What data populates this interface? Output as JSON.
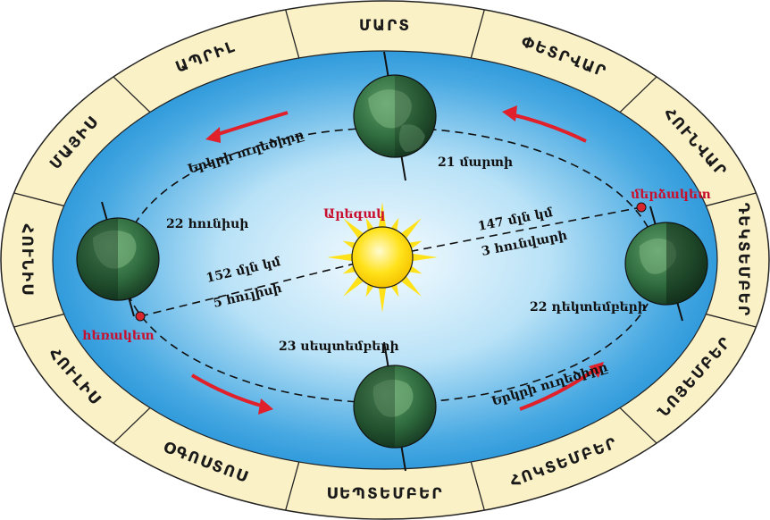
{
  "months": [
    "ՄԱՐՏ",
    "ՓԵՏՐՎԱՐ",
    "ՀՈՒՆՎԱՐ",
    "ԴԵԿՏԵՄԲԵՐ",
    "ՆՈՅԵՄԲԵՐ",
    "ՀՈԿՏԵՄԲԵՐ",
    "ՍԵՊՏԵՄԲԵՐ",
    "ՕԳՈՍՏՈՍ",
    "ՀՈՒԼԻՍ",
    "ՀՈՒՆԻՍ",
    "ՄԱՅԻՍ",
    "ԱՊՐԻԼ"
  ],
  "sun": {
    "label": "Արեգակ"
  },
  "positions": {
    "march": "21 մարտի",
    "june": "22 հունիսի",
    "september": "23 սեպտեմբերի",
    "december": "22 դեկտեմբերի"
  },
  "apsides": {
    "aphelion": "հեռակետ",
    "perihelion": "մերձակետ"
  },
  "distances": {
    "aphelion_distance": "152 մլն կմ",
    "aphelion_date": "5 հուլիսի",
    "perihelion_distance": "147 մլն կմ",
    "perihelion_date": "3 հունվարի"
  },
  "orbit_direction_label": "Երկրի ուղեծիրը",
  "colors": {
    "ring": "#fbf1c7",
    "sky_outer": "#1e8fd6",
    "sky_inner": "#eaf6fd",
    "arrow": "#e0202a",
    "sun": "#ffe21a",
    "accent_red": "#c8102e"
  }
}
